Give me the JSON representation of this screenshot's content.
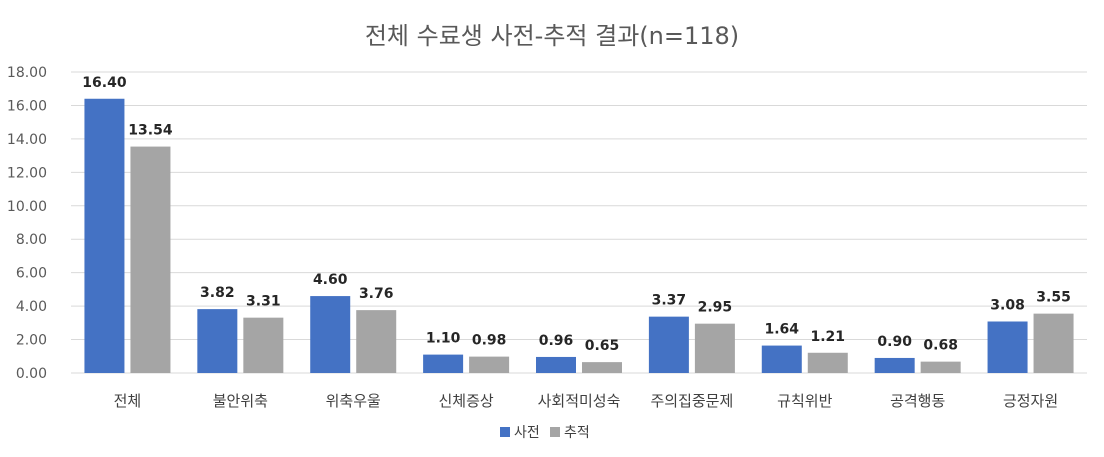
{
  "chart_data": {
    "type": "bar",
    "title": "전체 수료생 사전-추적 결과(n=118)",
    "xlabel": "",
    "ylabel": "",
    "ylim": [
      0,
      18
    ],
    "yticks": [
      "0.00",
      "2.00",
      "4.00",
      "6.00",
      "8.00",
      "10.00",
      "12.00",
      "14.00",
      "16.00",
      "18.00"
    ],
    "grid": true,
    "legend_position": "bottom",
    "categories": [
      "전체",
      "불안위축",
      "위축우울",
      "신체증상",
      "사회적미성숙",
      "주의집중문제",
      "규칙위반",
      "공격행동",
      "긍정자원"
    ],
    "series": [
      {
        "name": "사전",
        "color": "#4472c4",
        "values": [
          16.4,
          3.82,
          4.6,
          1.1,
          0.96,
          3.37,
          1.64,
          0.9,
          3.08
        ],
        "labels": [
          "16.40",
          "3.82",
          "4.60",
          "1.10",
          "0.96",
          "3.37",
          "1.64",
          "0.90",
          "3.08"
        ]
      },
      {
        "name": "추적",
        "color": "#a5a5a5",
        "values": [
          13.54,
          3.31,
          3.76,
          0.98,
          0.65,
          2.95,
          1.21,
          0.68,
          3.55
        ],
        "labels": [
          "13.54",
          "3.31",
          "3.76",
          "0.98",
          "0.65",
          "2.95",
          "1.21",
          "0.68",
          "3.55"
        ]
      }
    ]
  }
}
